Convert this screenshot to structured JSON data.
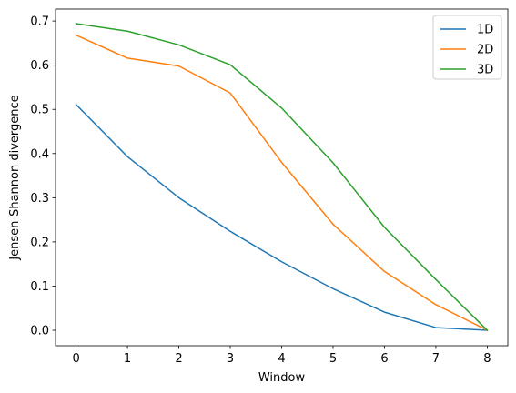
{
  "chart_data": {
    "type": "line",
    "title": "",
    "xlabel": "Window",
    "ylabel": "Jensen-Shannon divergence",
    "x": [
      0,
      1,
      2,
      3,
      4,
      5,
      6,
      7,
      8
    ],
    "xlim": [
      -0.4,
      8.4
    ],
    "ylim": [
      -0.035,
      0.727
    ],
    "xticks": [
      0,
      1,
      2,
      3,
      4,
      5,
      6,
      7,
      8
    ],
    "yticks": [
      0.0,
      0.1,
      0.2,
      0.3,
      0.4,
      0.5,
      0.6,
      0.7
    ],
    "ytick_labels": [
      "0.0",
      "0.1",
      "0.2",
      "0.3",
      "0.4",
      "0.5",
      "0.6",
      "0.7"
    ],
    "grid": false,
    "legend_position": "top-right",
    "series": [
      {
        "name": "1D",
        "color": "#1f77b4",
        "values": [
          0.511,
          0.393,
          0.3,
          0.224,
          0.155,
          0.094,
          0.041,
          0.006,
          0.0
        ]
      },
      {
        "name": "2D",
        "color": "#ff7f0e",
        "values": [
          0.668,
          0.616,
          0.598,
          0.537,
          0.38,
          0.24,
          0.133,
          0.058,
          0.0
        ]
      },
      {
        "name": "3D",
        "color": "#2ca02c",
        "values": [
          0.694,
          0.677,
          0.646,
          0.601,
          0.503,
          0.379,
          0.233,
          0.115,
          0.0
        ]
      }
    ]
  }
}
